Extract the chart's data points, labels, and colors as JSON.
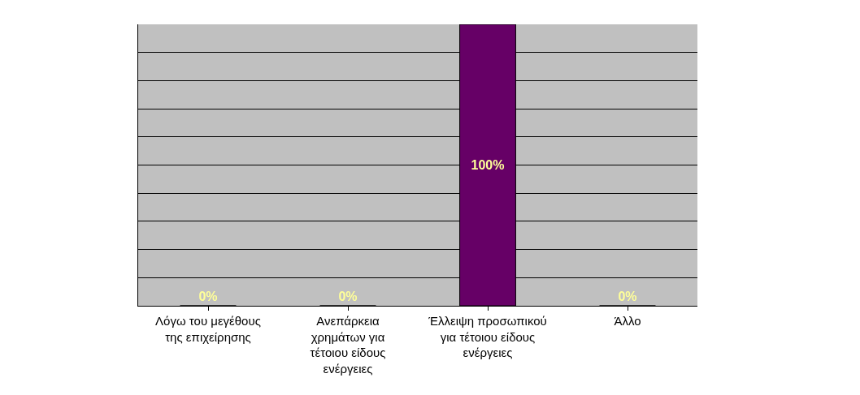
{
  "chart_data": {
    "type": "bar",
    "categories": [
      "Λόγω του μεγέθους της επιχείρησης",
      "Ανεπάρκεια χρημάτων για τέτοιου είδους ενέργειες",
      "Έλλειψη προσωπικού για τέτοιου είδους ενέργειες",
      "Άλλο"
    ],
    "values": [
      0,
      0,
      100,
      0
    ],
    "value_labels": [
      "0%",
      "0%",
      "100%",
      "0%"
    ],
    "color": "#660066",
    "ylim": [
      0,
      100
    ],
    "yticks": [
      {
        "value": 0,
        "label": null
      },
      {
        "value": 10,
        "label": null
      },
      {
        "value": 20,
        "label": null
      },
      {
        "value": 30,
        "label": null
      },
      {
        "value": 40,
        "label": null
      },
      {
        "value": 50,
        "label": null
      },
      {
        "value": 60,
        "label": null
      },
      {
        "value": 70,
        "label": null
      },
      {
        "value": 80,
        "label": null
      },
      {
        "value": 90,
        "label": null
      },
      {
        "value": 100,
        "label": null
      }
    ],
    "tick_labels": "x",
    "grid": "y"
  }
}
